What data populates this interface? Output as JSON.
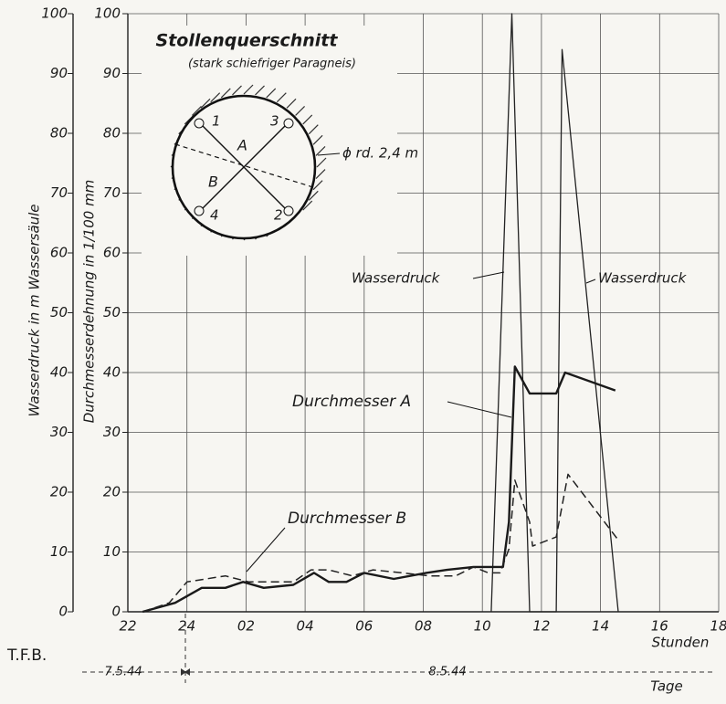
{
  "chart_data": {
    "type": "line",
    "y_label": "Wasserdruck in m Wassersäule",
    "y2_label": "Durchmesserdehnung in 1/100 mm",
    "x_label": "Stunden",
    "date_axis_label": "Tage",
    "source_label": "T.F.B.",
    "date_labels": [
      "7.5.44",
      "8.5.44"
    ],
    "xlim": [
      22,
      42
    ],
    "xticks": [
      22,
      24,
      {
        "value": 26,
        "label": "02"
      },
      {
        "value": 28,
        "label": "04"
      },
      {
        "value": 30,
        "label": "06"
      },
      {
        "value": 32,
        "label": "08"
      },
      {
        "value": 34,
        "label": "10"
      },
      {
        "value": 36,
        "label": "12"
      },
      {
        "value": 38,
        "label": "14"
      },
      {
        "value": 40,
        "label": "16"
      },
      {
        "value": 42,
        "label": "18"
      }
    ],
    "ylim": [
      0,
      100
    ],
    "yticks": [
      0,
      10,
      20,
      30,
      40,
      50,
      60,
      70,
      80,
      90,
      100
    ],
    "y2lim": [
      0,
      100
    ],
    "y2ticks": [
      0,
      10,
      20,
      30,
      40,
      50,
      60,
      70,
      80,
      90,
      100
    ],
    "grid": true,
    "series": [
      {
        "name": "Wasserdruck",
        "color": "#222222",
        "line_style": "solid",
        "axis": "y",
        "x": [
          34.3,
          35.0,
          35.6,
          36.5,
          36.7,
          38.6
        ],
        "values": [
          0,
          100,
          0,
          0,
          94,
          0
        ]
      },
      {
        "name": "Durchmesser A",
        "color": "#1a1a1a",
        "line_style": "solid",
        "axis": "y2",
        "x": [
          22.5,
          23.6,
          24.5,
          25.3,
          25.9,
          26.6,
          27.6,
          28.3,
          28.8,
          29.4,
          30.0,
          31.0,
          32.1,
          32.8,
          33.7,
          34.7,
          34.9,
          35.1,
          35.6,
          36.5,
          36.8,
          38.5
        ],
        "values": [
          0,
          1.5,
          4,
          4,
          5,
          4,
          4.5,
          6.5,
          5,
          5,
          6.5,
          5.5,
          6.5,
          7,
          7.5,
          7.5,
          15,
          41,
          36.5,
          36.5,
          40,
          37
        ]
      },
      {
        "name": "Durchmesser B",
        "color": "#222222",
        "line_style": "dashed",
        "axis": "y2",
        "x": [
          22.5,
          23.4,
          24.0,
          25.3,
          26.1,
          27.6,
          28.2,
          28.8,
          29.6,
          30.3,
          31.3,
          32.2,
          33.1,
          33.7,
          34.2,
          34.6,
          34.9,
          35.1,
          35.6,
          35.7,
          36.5,
          36.9,
          38.6
        ],
        "values": [
          0,
          1.5,
          5,
          6,
          5,
          5,
          7,
          7,
          6,
          7,
          6.5,
          6,
          6,
          7.5,
          6.5,
          6.5,
          10.5,
          22,
          15,
          11,
          12.5,
          23,
          12
        ]
      }
    ],
    "inset": {
      "title": "Stollenquerschnitt",
      "subtitle": "(stark schiefriger Paragneis)",
      "diameter": "ϕ rd. 2,4 m",
      "points": [
        "1",
        "2",
        "3",
        "4"
      ],
      "axes": [
        "A",
        "B"
      ]
    }
  }
}
